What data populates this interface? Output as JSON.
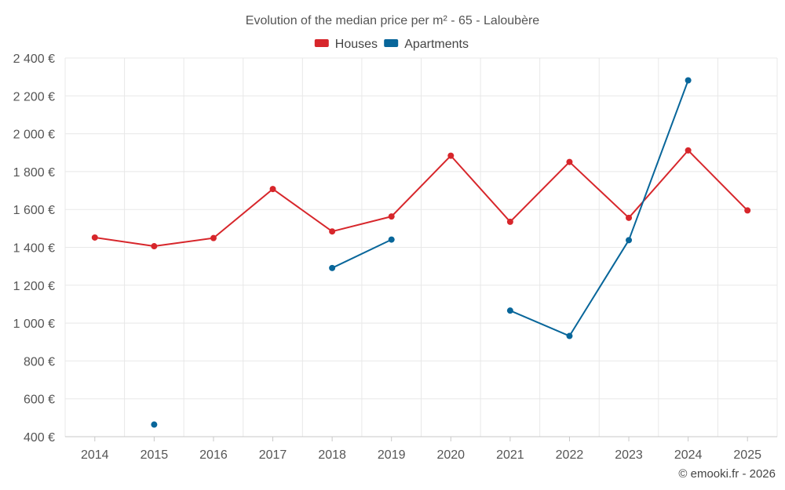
{
  "chart_data": {
    "type": "line",
    "title": "Evolution of the median price per m² - 65 - Laloubère",
    "categories": [
      "2014",
      "2015",
      "2016",
      "2017",
      "2018",
      "2019",
      "2020",
      "2021",
      "2022",
      "2023",
      "2024",
      "2025"
    ],
    "series": [
      {
        "name": "Houses",
        "color": "#d7262b",
        "values": [
          1452,
          1406,
          1449,
          1708,
          1484,
          1563,
          1884,
          1535,
          1851,
          1556,
          1912,
          1595
        ]
      },
      {
        "name": "Apartments",
        "color": "#08669a",
        "values": [
          null,
          464,
          null,
          null,
          1291,
          1441,
          null,
          1066,
          932,
          1438,
          2282,
          null
        ]
      }
    ],
    "ylim": [
      400,
      2400
    ],
    "yticks": [
      400,
      600,
      800,
      1000,
      1200,
      1400,
      1600,
      1800,
      2000,
      2200,
      2400
    ],
    "ytick_labels": [
      "400 €",
      "600 €",
      "800 €",
      "1 000 €",
      "1 200 €",
      "1 400 €",
      "1 600 €",
      "1 800 €",
      "2 000 €",
      "2 200 €",
      "2 400 €"
    ],
    "xlabel": "",
    "ylabel": "",
    "legend_position": "top-center",
    "grid": true
  },
  "credit": "© emooki.fr - 2026"
}
